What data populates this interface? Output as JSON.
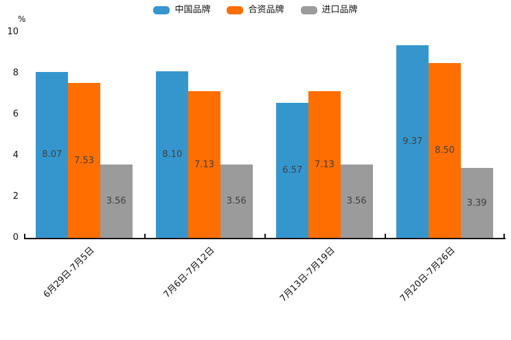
{
  "chart_data": {
    "type": "bar",
    "title": "",
    "unit_label": "%",
    "categories": [
      "6月29日-7月5日",
      "7月6日-7月12日",
      "7月13日-7月19日",
      "7月20日-7月26日"
    ],
    "series": [
      {
        "name": "中国品牌",
        "color": "#3596CE",
        "values": [
          8.07,
          8.1,
          6.57,
          9.37
        ]
      },
      {
        "name": "合资品牌",
        "color": "#FF6E00",
        "values": [
          7.53,
          7.13,
          7.13,
          8.5
        ]
      },
      {
        "name": "进口品牌",
        "color": "#9B9B9B",
        "values": [
          3.56,
          3.56,
          3.56,
          3.39
        ]
      }
    ],
    "ylim": [
      0,
      10
    ],
    "yticks": [
      0,
      2,
      4,
      6,
      8,
      10
    ],
    "grid": false,
    "legend_position": "top",
    "value_labels": "inside-center",
    "value_label_color": "#3f3f3f",
    "axis_color": "#111111",
    "background_color": "#ffffff"
  }
}
